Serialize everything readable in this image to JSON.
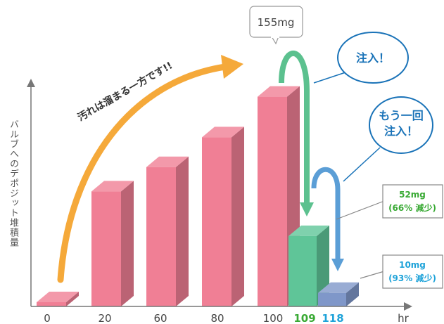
{
  "chart_data": {
    "type": "bar",
    "xlabel": "hr",
    "ylabel": "バルブへのデポジット堆積量",
    "categories": [
      "0",
      "20",
      "60",
      "80",
      "100",
      "109",
      "118"
    ],
    "values": [
      0,
      85,
      103,
      125,
      155,
      52,
      10
    ],
    "units": "mg",
    "ylim": [
      0,
      160
    ],
    "grid": false,
    "bar_colors": [
      "#f07f95",
      "#f07f95",
      "#f07f95",
      "#f07f95",
      "#f07f95",
      "#5fc598",
      "#7f97c9"
    ],
    "tick_colors": [
      "#444444",
      "#444444",
      "#444444",
      "#444444",
      "#444444",
      "#3aaa35",
      "#1fa3d9"
    ],
    "annotations": {
      "peak_label": "155mg",
      "trend_text": "汚れは溜まる一方です!!",
      "inject1": "注入！",
      "inject2_line1": "もう一回",
      "inject2_line2": "注入！",
      "reduction1_value": "52mg",
      "reduction1_pct": "(66% 減少)",
      "reduction2_value": "10mg",
      "reduction2_pct": "(93% 減少)"
    }
  }
}
